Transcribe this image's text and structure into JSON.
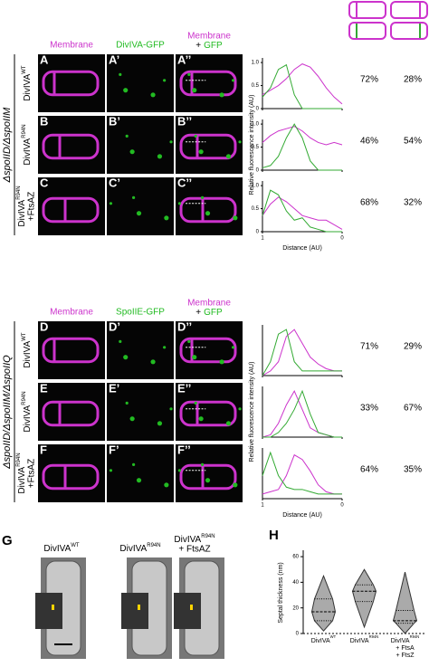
{
  "top": {
    "side_label": "ΔspoIID/ΔspoIIM",
    "headers": {
      "membrane": "Membrane",
      "gfp": "DivIVA-GFP",
      "merge": [
        "Membrane",
        "+",
        "GFP"
      ]
    },
    "rows": [
      {
        "letters": [
          "A",
          "A’",
          "A’’"
        ],
        "strain": "DivIVA",
        "sup": "WT",
        "percents": [
          "72%",
          "28%"
        ]
      },
      {
        "letters": [
          "B",
          "B’",
          "B’’"
        ],
        "strain": "DivIVA",
        "sup": "R94N",
        "percents": [
          "46%",
          "54%"
        ]
      },
      {
        "letters": [
          "C",
          "C’",
          "C’’"
        ],
        "strain": "DivIVA",
        "sup": "R94N",
        "extra": "+FtsAZ",
        "percents": [
          "68%",
          "32%"
        ]
      }
    ],
    "plots": {
      "ylabel": "Relative fluorescence intensity (AU)",
      "xlabel": "Distance (AU)",
      "xlim": [
        1,
        0
      ],
      "ylim": [
        0,
        1.1
      ],
      "yticks": [
        {
          "value": 1,
          "label": "1.0"
        },
        {
          "value": 0.5,
          "label": "0.5"
        },
        0
      ],
      "xticks": [
        1,
        0
      ],
      "x": [
        1,
        0.9,
        0.8,
        0.7,
        0.6,
        0.5,
        0.4,
        0.3,
        0.2,
        0.1,
        0
      ],
      "charts": [
        {
          "series": [
            {
              "color": "#cc33cc",
              "values": [
                0.3,
                0.4,
                0.5,
                0.65,
                0.85,
                0.97,
                0.9,
                0.7,
                0.45,
                0.25,
                0.1
              ]
            },
            {
              "color": "#33aa33",
              "values": [
                0.25,
                0.45,
                0.85,
                0.95,
                0.3,
                0,
                0,
                0,
                0,
                0,
                0
              ]
            }
          ]
        },
        {
          "series": [
            {
              "color": "#cc33cc",
              "values": [
                0.6,
                0.75,
                0.85,
                0.9,
                0.95,
                0.85,
                0.7,
                0.6,
                0.55,
                0.6,
                0.55
              ]
            },
            {
              "color": "#33aa33",
              "values": [
                0.05,
                0.1,
                0.3,
                0.7,
                1,
                0.7,
                0.2,
                0,
                0,
                0,
                0
              ]
            }
          ]
        },
        {
          "series": [
            {
              "color": "#cc33cc",
              "values": [
                0.35,
                0.6,
                0.75,
                0.65,
                0.5,
                0.35,
                0.3,
                0.25,
                0.25,
                0.15,
                0.05
              ]
            },
            {
              "color": "#33aa33",
              "values": [
                0.35,
                0.9,
                0.8,
                0.45,
                0.25,
                0.3,
                0.1,
                0.05,
                0,
                0,
                0
              ]
            }
          ]
        }
      ]
    }
  },
  "bottom": {
    "side_label": "ΔspoIID/ΔspoIIM/ΔspoIIQ",
    "headers": {
      "membrane": "Membrane",
      "gfp": "SpoIIE-GFP",
      "merge": [
        "Membrane",
        "+",
        "GFP"
      ]
    },
    "rows": [
      {
        "letters": [
          "D",
          "D’",
          "D’’"
        ],
        "strain": "DivIVA",
        "sup": "WT",
        "percents": [
          "71%",
          "29%"
        ]
      },
      {
        "letters": [
          "E",
          "E’",
          "E’’"
        ],
        "strain": "DivIVA",
        "sup": "R94N",
        "percents": [
          "33%",
          "67%"
        ]
      },
      {
        "letters": [
          "F",
          "F’",
          "F’’"
        ],
        "strain": "DivIVA",
        "sup": "R94N",
        "extra": "+FtsAZ",
        "percents": [
          "64%",
          "35%"
        ]
      }
    ],
    "plots": {
      "ylabel": "Relative fluorescence intensity (AU)",
      "xlabel": "Distance (AU)",
      "xlim": [
        1,
        0
      ],
      "ylim": [
        0,
        1.1
      ],
      "xticks": [
        1,
        0
      ],
      "x": [
        1,
        0.9,
        0.8,
        0.7,
        0.6,
        0.5,
        0.4,
        0.3,
        0.2,
        0.1,
        0
      ],
      "charts": [
        {
          "series": [
            {
              "color": "#cc33cc",
              "values": [
                0,
                0.1,
                0.3,
                0.85,
                1,
                0.7,
                0.4,
                0.25,
                0.15,
                0.1,
                0.1
              ]
            },
            {
              "color": "#33aa33",
              "values": [
                0,
                0.3,
                0.9,
                1,
                0.3,
                0.1,
                0.1,
                0.1,
                0.1,
                0.1,
                0.1
              ]
            }
          ]
        },
        {
          "series": [
            {
              "color": "#cc33cc",
              "values": [
                0,
                0.05,
                0.3,
                0.7,
                1,
                0.6,
                0.2,
                0.1,
                0.05,
                0,
                0
              ]
            },
            {
              "color": "#33aa33",
              "values": [
                0,
                0,
                0.1,
                0.3,
                0.6,
                1,
                0.5,
                0.1,
                0.05,
                0,
                0
              ]
            }
          ]
        },
        {
          "series": [
            {
              "color": "#cc33cc",
              "values": [
                0.1,
                0.15,
                0.2,
                0.5,
                0.95,
                0.85,
                0.6,
                0.3,
                0.15,
                0.1,
                0.1
              ]
            },
            {
              "color": "#33aa33",
              "values": [
                0.5,
                1,
                0.5,
                0.25,
                0.2,
                0.2,
                0.15,
                0.1,
                0.1,
                0.1,
                0.1
              ]
            }
          ]
        }
      ]
    }
  },
  "panel_g": {
    "letter": "G",
    "labels": [
      {
        "name": "DivIVA",
        "sup": "WT"
      },
      {
        "name": "DivIVA",
        "sup": "R94N"
      },
      {
        "name": "DivIVA",
        "sup": "R94N",
        "extra": "+ FtsAZ"
      }
    ]
  },
  "panel_h": {
    "letter": "H",
    "chart_data": {
      "type": "violin",
      "ylabel": "Septal thickness (nm)",
      "ylim": [
        0,
        65
      ],
      "yticks": [
        0,
        20,
        40,
        60
      ],
      "categories": [
        {
          "name": "DivIVA",
          "sup": "WT"
        },
        {
          "name": "DivIVA",
          "sup": "R94N"
        },
        {
          "name": "DivIVA",
          "sup": "R94N",
          "extra": [
            "+ FtsA",
            "+ FtsZ"
          ]
        }
      ],
      "min": [
        2,
        5,
        0
      ],
      "q1": [
        10,
        25,
        8
      ],
      "median": [
        17,
        33,
        10
      ],
      "q3": [
        27,
        38,
        18
      ],
      "max": [
        45,
        50,
        48
      ],
      "color": "#aaaaaa"
    }
  }
}
